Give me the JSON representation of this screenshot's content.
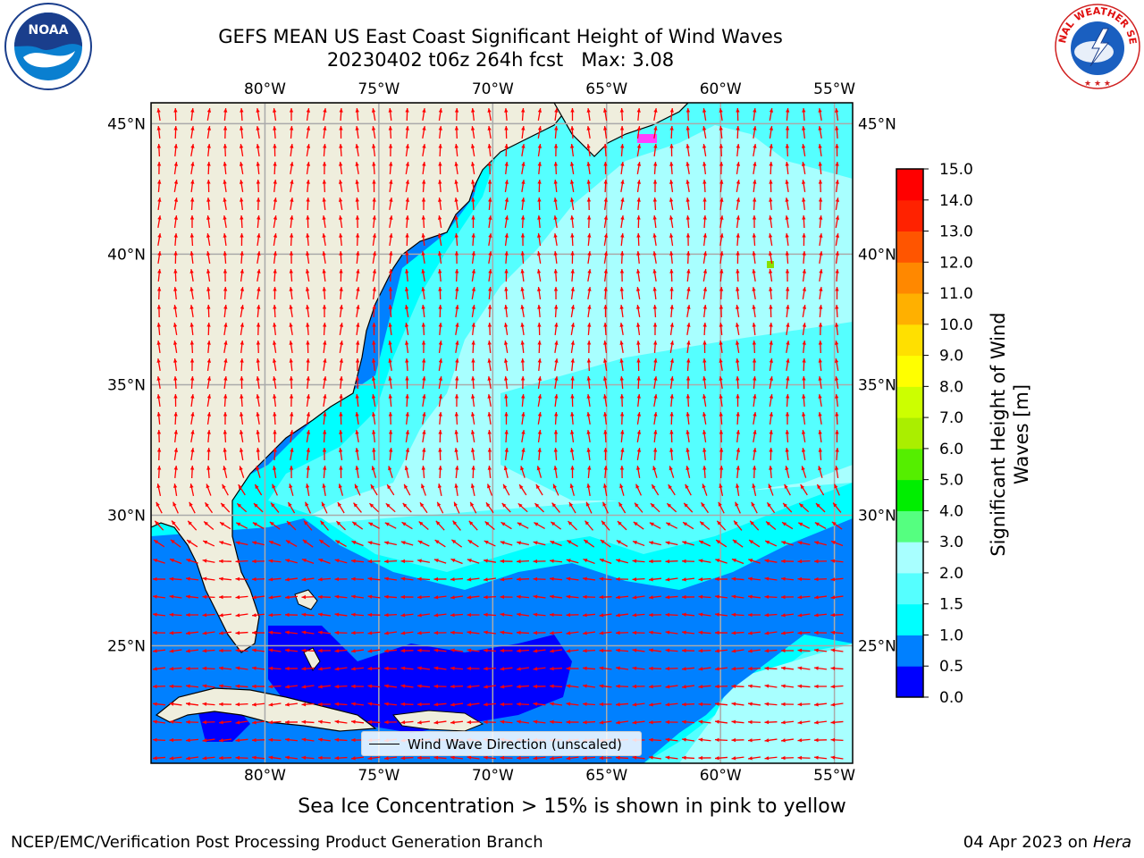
{
  "header": {
    "title_line1": "GEFS MEAN US East Coast Significant Height of Wind Waves",
    "title_line2": "20230402 t06z 264h fcst   Max: 3.08"
  },
  "logos": {
    "left": {
      "icon": "noaa-logo",
      "text": "NOAA",
      "ring_text": "NATIONAL OCEANIC AND ATMOSPHERIC ADMINISTRATION · U.S. DEPARTMENT OF COMMERCE"
    },
    "right": {
      "icon": "nws-logo",
      "ring_text": "NATIONAL WEATHER SERVICE"
    }
  },
  "map": {
    "lon_labels": [
      "80°W",
      "75°W",
      "70°W",
      "65°W",
      "60°W",
      "55°W"
    ],
    "lat_labels": [
      "45°N",
      "40°N",
      "35°N",
      "30°N",
      "25°N"
    ],
    "extent": {
      "lon_min": -85,
      "lon_max": -54.2,
      "lat_min": 20.5,
      "lat_max": 45.8
    },
    "gridlines": true,
    "arrow_color": "#ff0000",
    "land_color": "#efeedd",
    "legend": {
      "label": "Wind Wave Direction (unscaled)",
      "placement": "bottom-center"
    }
  },
  "colorbar": {
    "label": "Significant Height of Wind Waves [m]",
    "label_line1": "Significant Height of Wind",
    "label_line2": "Waves [m]",
    "ticks": [
      "0.0",
      "0.5",
      "1.0",
      "1.5",
      "2.0",
      "3.0",
      "4.0",
      "5.0",
      "6.0",
      "7.0",
      "8.0",
      "9.0",
      "10.0",
      "11.0",
      "12.0",
      "13.0",
      "14.0",
      "15.0"
    ],
    "colors": [
      "#0000ff",
      "#0080ff",
      "#00ffff",
      "#55ffff",
      "#a8ffff",
      "#55ff80",
      "#00ee00",
      "#55ee00",
      "#aaee00",
      "#ccff00",
      "#ffff00",
      "#ffe000",
      "#ffb000",
      "#ff8800",
      "#ff5500",
      "#ff2200",
      "#ff0000"
    ]
  },
  "footer": {
    "note": "Sea Ice Concentration > 15% is shown in pink to yellow",
    "left": "NCEP/EMC/Verification Post Processing Product Generation Branch",
    "right_date": "04 Apr 2023 on ",
    "right_host": "Hera"
  }
}
